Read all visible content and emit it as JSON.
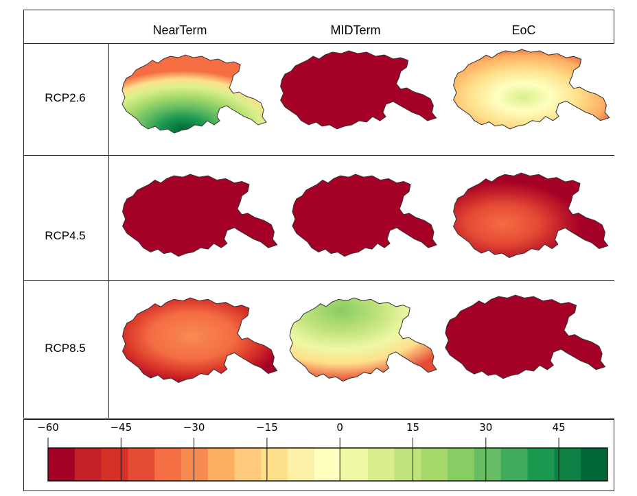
{
  "columns": [
    "NearTerm",
    "MIDTerm",
    "EoC"
  ],
  "rows": [
    "RCP2.6",
    "RCP4.5",
    "RCP8.5"
  ],
  "maps": [
    [
      "green-center",
      "all-dark-red",
      "yellow-center"
    ],
    [
      "all-dark-red",
      "all-dark-red",
      "orange-center"
    ],
    [
      "orange-center",
      "lightgreen-center",
      "all-dark-red"
    ]
  ],
  "colorbar": {
    "ticks": [
      "−60",
      "−45",
      "−30",
      "−15",
      "0",
      "15",
      "30",
      "45"
    ],
    "min": -60,
    "max": 55,
    "colors": [
      "#a50026",
      "#c3202a",
      "#d73027",
      "#e64b35",
      "#f46d43",
      "#f88b52",
      "#fdae61",
      "#fec97a",
      "#fee08b",
      "#fef0a7",
      "#ffffbf",
      "#eef8a5",
      "#d9ef8b",
      "#c0e27a",
      "#a6d96a",
      "#88cc64",
      "#66bd63",
      "#40ab5a",
      "#1a9850",
      "#0e8245",
      "#006837"
    ]
  }
}
